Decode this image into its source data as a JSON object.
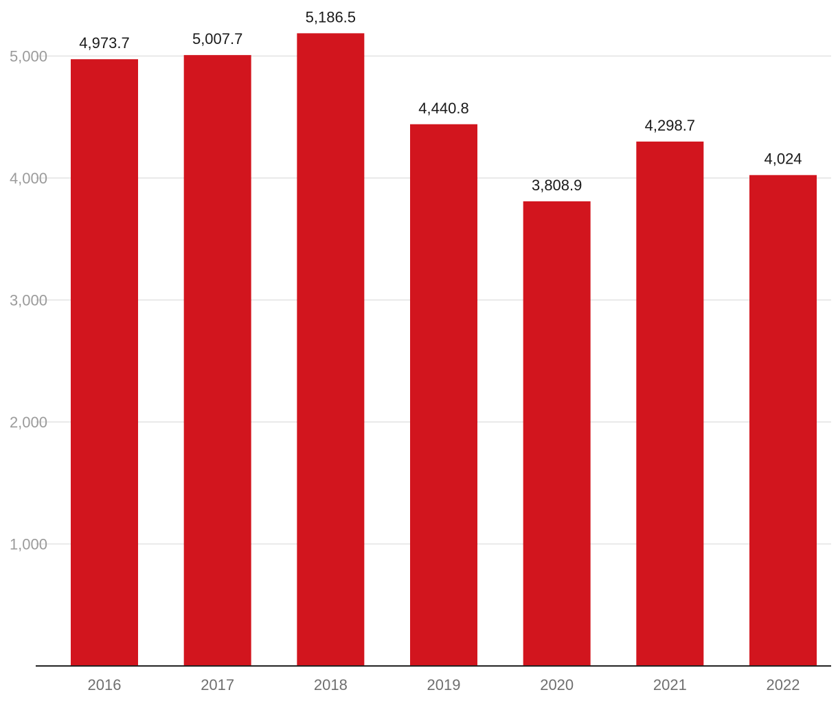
{
  "chart_data": {
    "type": "bar",
    "categories": [
      "2016",
      "2017",
      "2018",
      "2019",
      "2020",
      "2021",
      "2022"
    ],
    "values": [
      4973.7,
      5007.7,
      5186.5,
      4440.8,
      3808.9,
      4298.7,
      4024
    ],
    "data_labels": [
      "4,973.7",
      "5,007.7",
      "5,186.5",
      "4,440.8",
      "3,808.9",
      "4,298.7",
      "4,024"
    ],
    "yticks": [
      1000,
      2000,
      3000,
      4000,
      5000
    ],
    "ytick_labels": [
      "1,000",
      "2,000",
      "3,000",
      "4,000",
      "5,000"
    ],
    "ylim": [
      0,
      5000
    ],
    "grid": true,
    "legend": "none",
    "title": "",
    "xlabel": "",
    "ylabel": "",
    "colors": {
      "bar": "#d2151e",
      "grid": "#e2e2e2",
      "axis": "#222222",
      "ytick_text": "#9b9b9b",
      "xtick_text": "#6f6f6f",
      "label_text": "#1a1a1a"
    }
  }
}
